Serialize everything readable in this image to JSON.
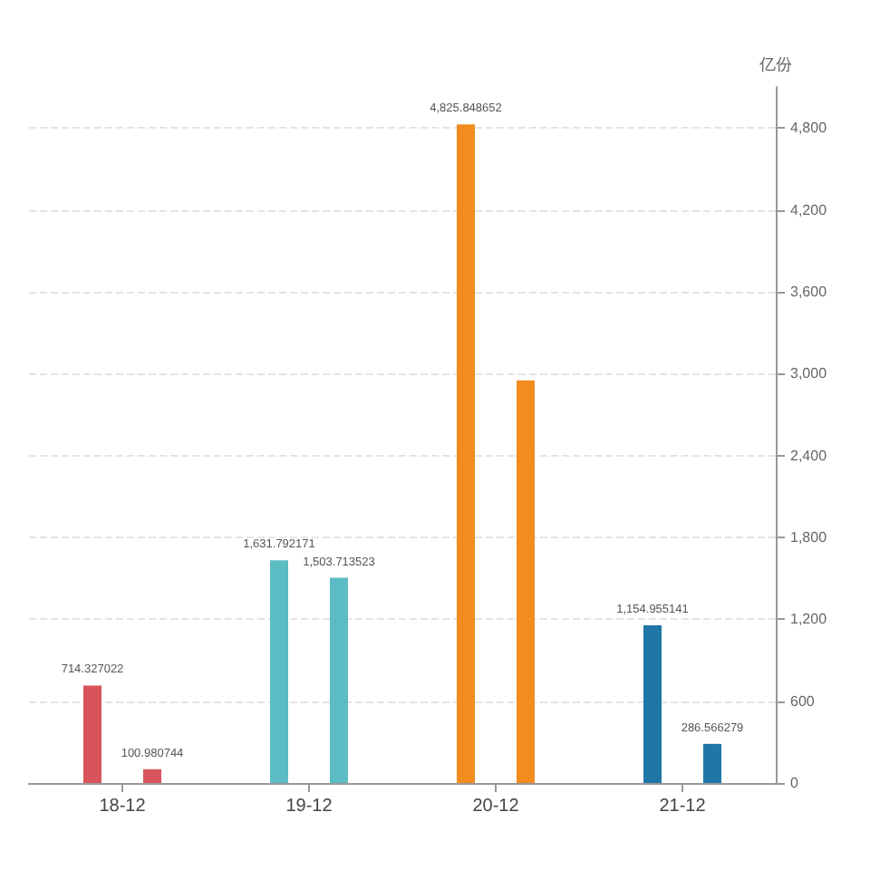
{
  "chart_data": {
    "type": "bar",
    "ylabel": "亿份",
    "categories": [
      "18-12",
      "19-12",
      "20-12",
      "21-12"
    ],
    "series": [
      {
        "colors": [
          "#d9545a",
          "#5bbcc4",
          "#f28c1e",
          "#1f77a8"
        ],
        "values": [
          714.327022,
          1631.792171,
          4825.848652,
          1154.955141
        ],
        "value_labels": [
          "714.327022",
          "1,631.792171",
          "4,825.848652",
          "1,154.955141"
        ]
      },
      {
        "colors": [
          "#d9545a",
          "#5bbcc4",
          "#f28c1e",
          "#1f77a8"
        ],
        "values": [
          100.980744,
          1503.713523,
          2950,
          286.566279
        ],
        "value_labels": [
          "100.980744",
          "1,503.713523",
          null,
          "286.566279"
        ]
      }
    ],
    "ylim": [
      0,
      5100
    ],
    "yticks": [
      {
        "value": 0,
        "label": "0"
      },
      {
        "value": 600,
        "label": "600"
      },
      {
        "value": 1200,
        "label": "1,200"
      },
      {
        "value": 1800,
        "label": "1,800"
      },
      {
        "value": 2400,
        "label": "2,400"
      },
      {
        "value": 3000,
        "label": "3,000"
      },
      {
        "value": 3600,
        "label": "3,600"
      },
      {
        "value": 4200,
        "label": "4,200"
      },
      {
        "value": 4800,
        "label": "4,800"
      }
    ],
    "grid": "y"
  }
}
